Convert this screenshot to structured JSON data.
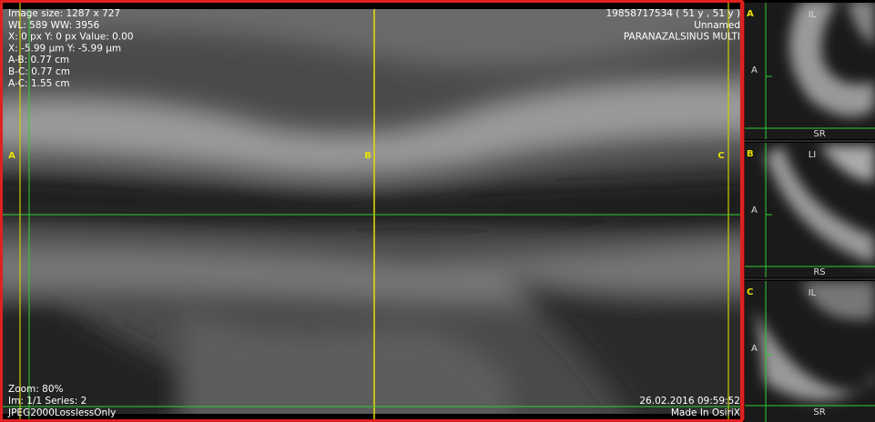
{
  "main_view": {
    "info_top_left": [
      "Image size: 1287 x 727",
      "WL: 589 WW: 3956",
      "X: 0 px Y: 0 px Value: 0.00",
      "X: -5.99 µm Y: -5.99 µm",
      "A-B: 0.77 cm",
      "B-C: 0.77 cm",
      "A-C: 1.55 cm"
    ],
    "info_top_right": [
      "19858717534 ( 51 y , 51 y )",
      "Unnamed",
      "PARANAZALSINUS MULTI"
    ],
    "markers": [
      "A",
      "B",
      "C"
    ],
    "info_bottom_left": [
      "Zoom: 80%",
      "Im: 1/1  Series: 2",
      "JPEG2000LosslessOnly"
    ],
    "info_bottom_right": [
      "26.02.2016 09:59:52",
      "Made In OsiriX"
    ]
  },
  "side_views": [
    {
      "marker": "A",
      "top": "IL",
      "left": "A",
      "bottom": "SR"
    },
    {
      "marker": "B",
      "top": "LI",
      "left": "A",
      "bottom": "RS"
    },
    {
      "marker": "C",
      "top": "IL",
      "left": "A",
      "bottom": "SR"
    }
  ]
}
